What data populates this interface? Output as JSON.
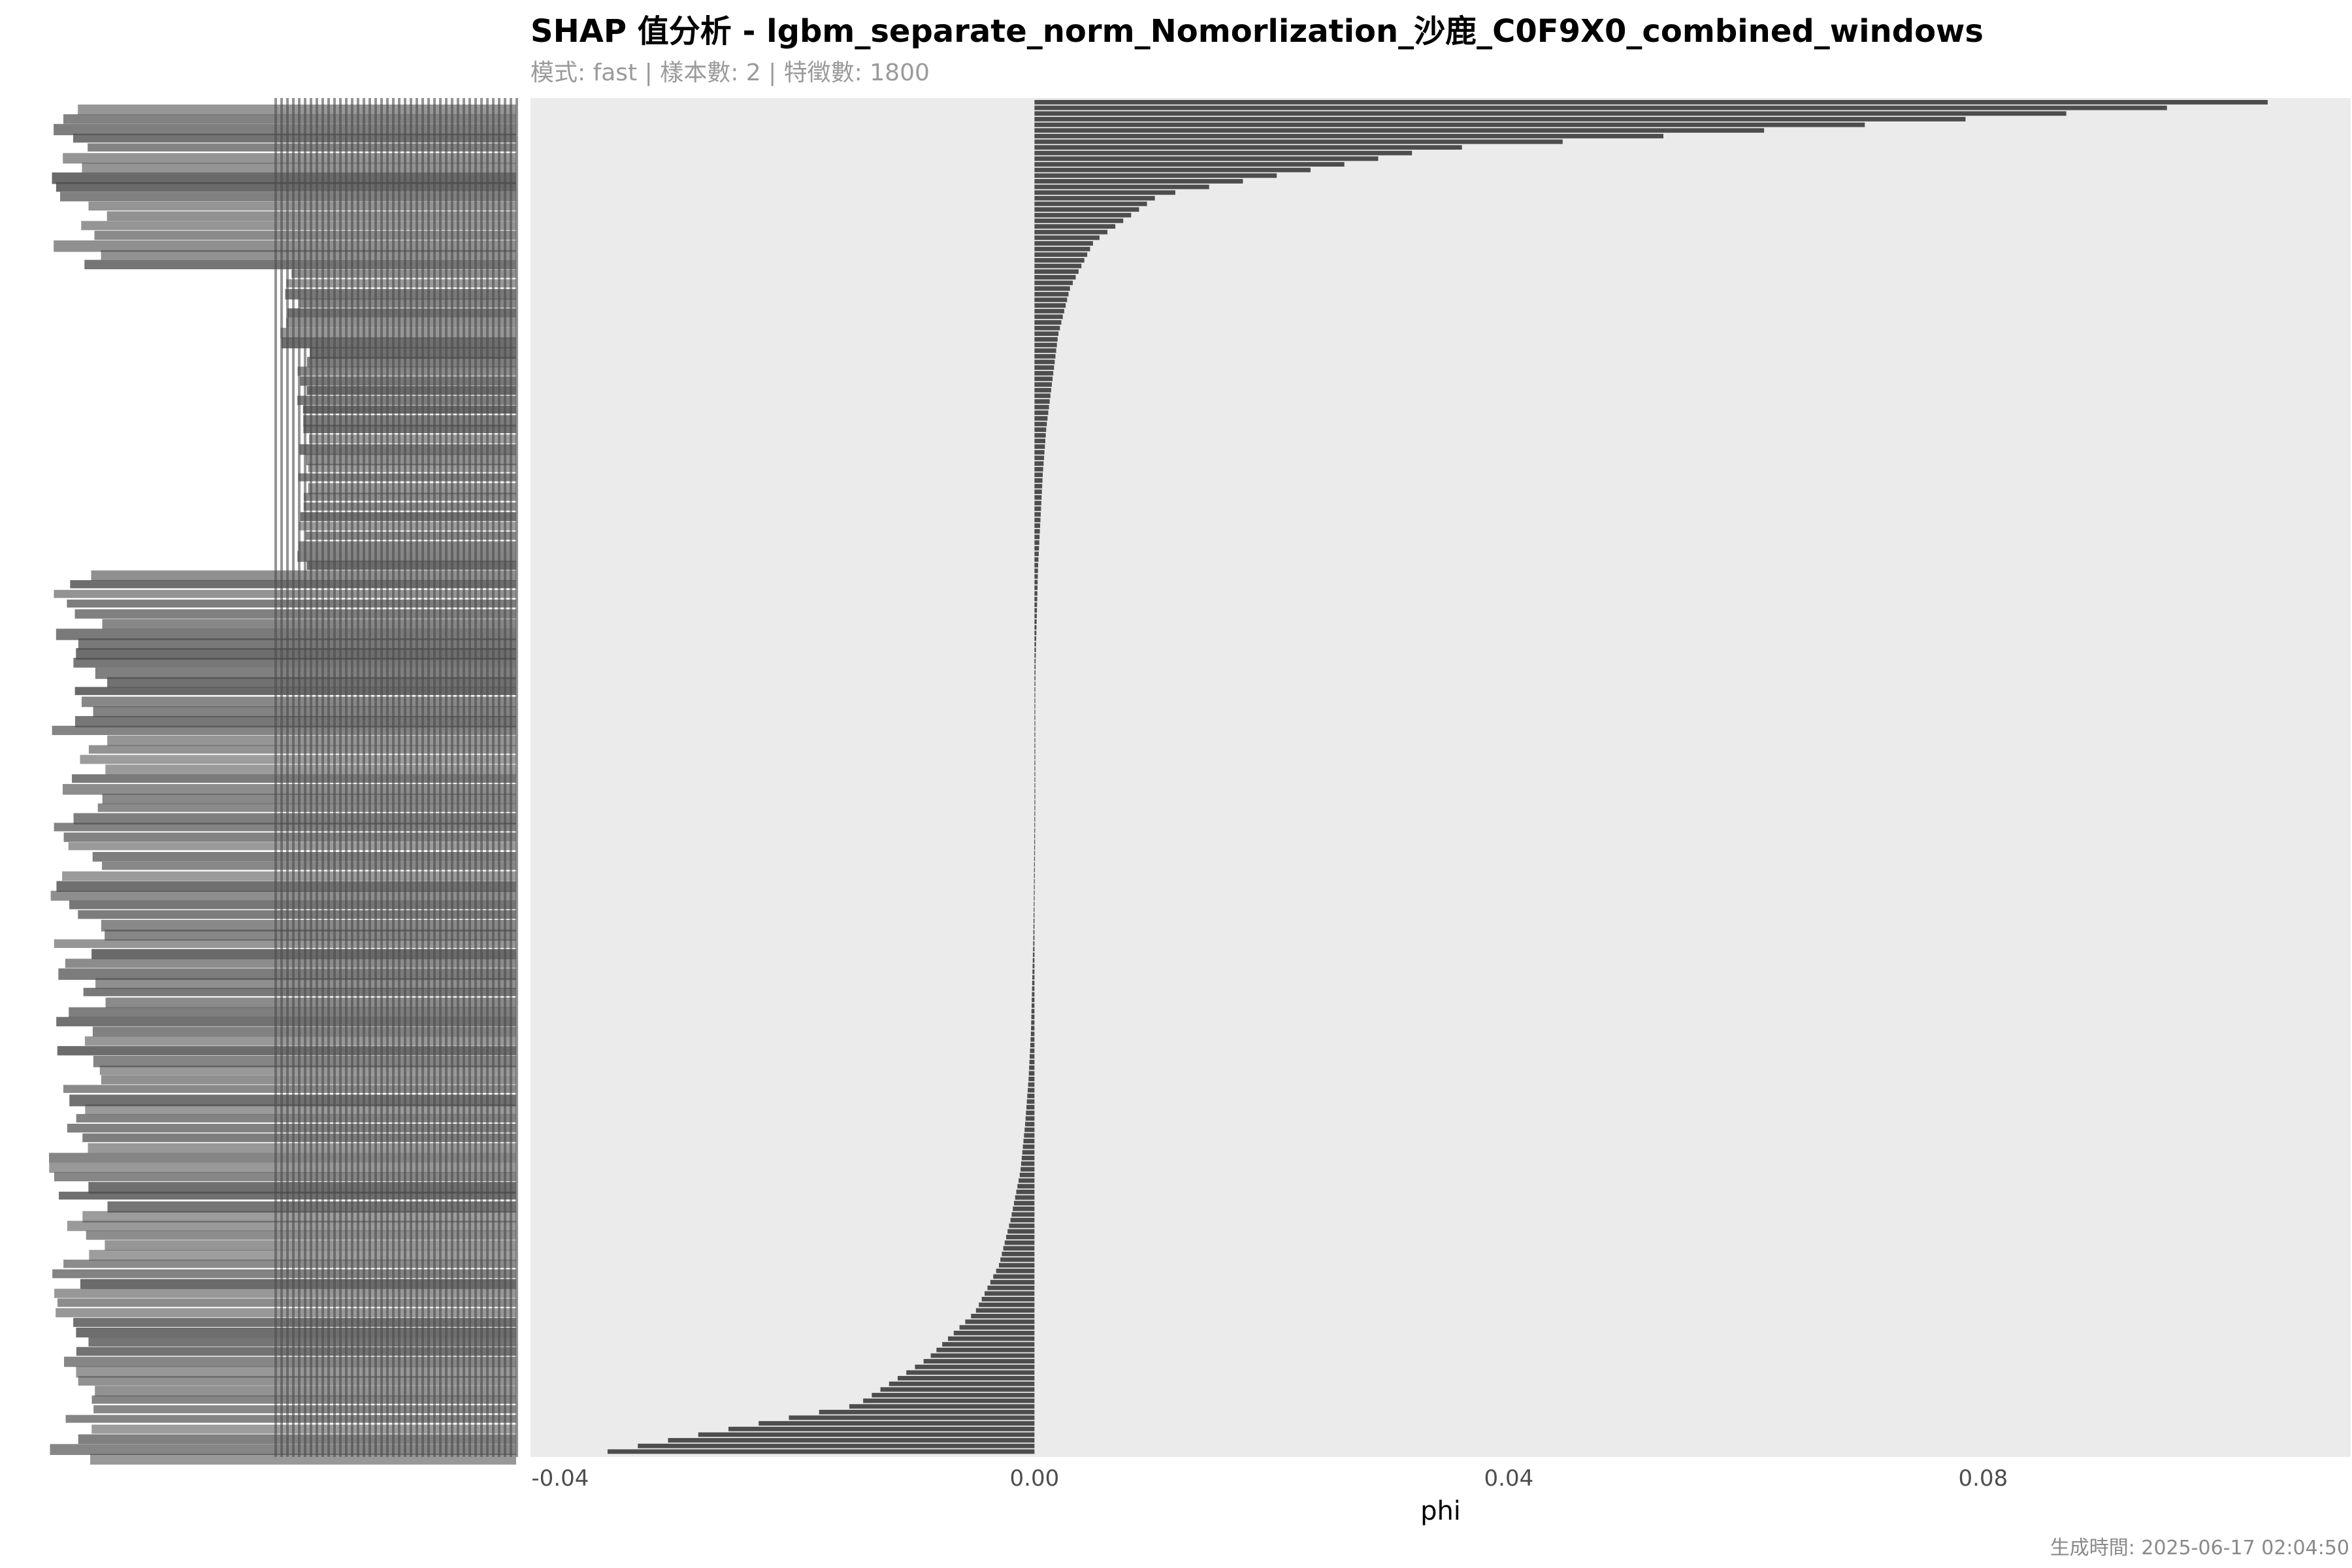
{
  "title": "SHAP 值分析 - lgbm_separate_norm_Nomorlization_沙鹿_C0F9X0_combined_windows",
  "subtitle": "模式: fast | 樣本數: 2 | 特徵數: 1800",
  "caption": "生成時間: 2025-06-17 02:04:50",
  "colors": {
    "panel": "#ebebeb",
    "bar": "#4d4d4d",
    "text": "#4d4d4d",
    "subtitle": "#9a9a9a"
  },
  "chart_data": {
    "type": "bar",
    "orientation": "horizontal",
    "xlabel": "phi",
    "ylabel": "",
    "xlim": [
      -0.0425,
      0.111
    ],
    "x_ticks": [
      -0.04,
      0.0,
      0.04,
      0.08
    ],
    "x_tick_labels": [
      "-0.04",
      "0.00",
      "0.04",
      "0.08"
    ],
    "grid": false,
    "legend": "none",
    "n_features": 1800,
    "feature_label_prefix": "feature_",
    "sorted": "descending",
    "representative_values": [
      0.104,
      0.034,
      0.0105,
      0.005,
      0.003,
      0.002,
      0.0015,
      0.001,
      0.0007,
      0.0005,
      0.0003,
      0.0002,
      0.0001,
      5e-05,
      2e-05,
      0.0,
      -2e-05,
      -5e-05,
      -0.0001,
      -0.0002,
      -0.0003,
      -0.0005,
      -0.0008,
      -0.0012,
      -0.002,
      -0.003,
      -0.005,
      -0.009,
      -0.015,
      -0.036
    ]
  }
}
